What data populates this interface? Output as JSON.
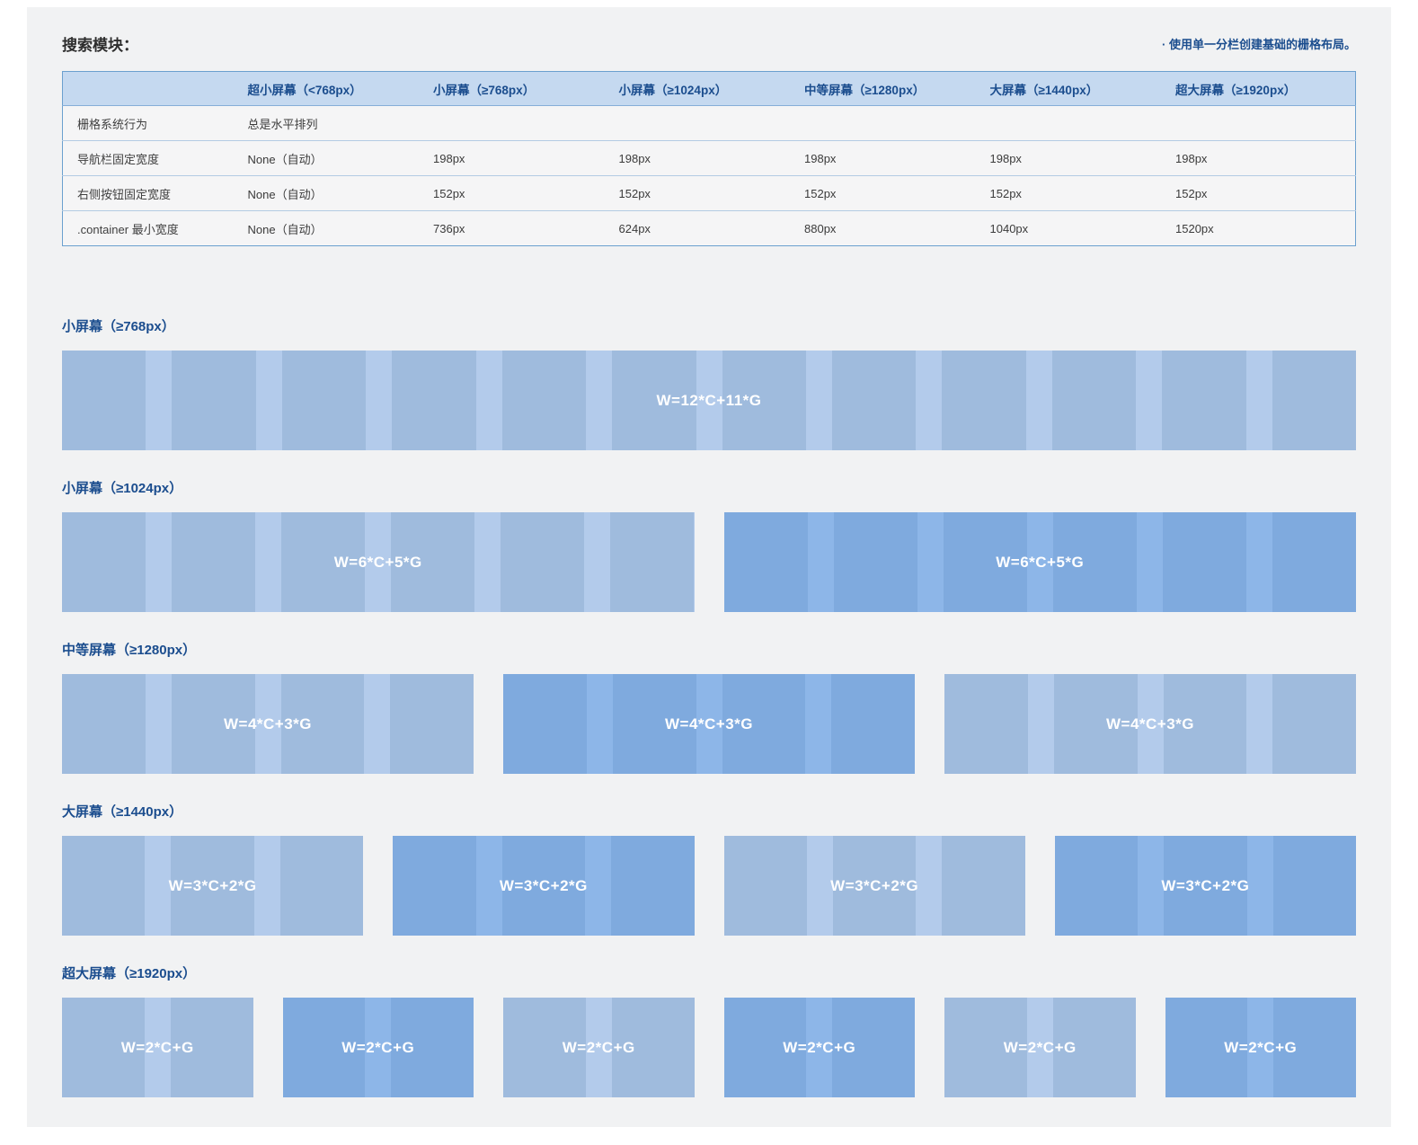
{
  "page": {
    "title": "搜索模块：",
    "note": "· 使用单一分栏创建基础的栅格布局。"
  },
  "colors": {
    "panel_bg": "#f1f2f3",
    "header_bg": "#c5d9f0",
    "header_text": "#1b4d8e",
    "table_border": "#6ba0cf",
    "row_border": "#b3cbe3",
    "row_bg": "#f5f5f6",
    "body_text": "#3b3b3b",
    "heading_text": "#1b4d8e",
    "bar_label_text": "#ffffff",
    "light_column": "#9fbbdd",
    "light_gutter": "#b3cbeb",
    "dark_column": "#7faade",
    "dark_gutter": "#8db6e8"
  },
  "table": {
    "headers": [
      "",
      "超小屏幕（<768px）",
      "小屏幕（≥768px）",
      "小屏幕（≥1024px）",
      "中等屏幕（≥1280px）",
      "大屏幕（≥1440px）",
      "超大屏幕（≥1920px）"
    ],
    "rows": [
      {
        "label": "栅格系统行为",
        "values": [
          "总是水平排列",
          "",
          "",
          "",
          "",
          ""
        ]
      },
      {
        "label": "导航栏固定宽度",
        "values": [
          "None（自动）",
          "198px",
          "198px",
          "198px",
          "198px",
          "198px"
        ]
      },
      {
        "label": "右侧按钮固定宽度",
        "values": [
          "None（自动）",
          "152px",
          "152px",
          "152px",
          "152px",
          "152px"
        ]
      },
      {
        "label": ".container 最小宽度",
        "values": [
          "None（自动）",
          "736px",
          "624px",
          "880px",
          "1040px",
          "1520px"
        ]
      }
    ]
  },
  "sections": [
    {
      "heading": "小屏幕（≥768px）",
      "bars": [
        {
          "label": "W=12*C+11*G",
          "columns": 12,
          "scheme": "light"
        }
      ]
    },
    {
      "heading": "小屏幕（≥1024px）",
      "bars": [
        {
          "label": "W=6*C+5*G",
          "columns": 6,
          "scheme": "light"
        },
        {
          "label": "W=6*C+5*G",
          "columns": 6,
          "scheme": "dark"
        }
      ]
    },
    {
      "heading": "中等屏幕（≥1280px）",
      "bars": [
        {
          "label": "W=4*C+3*G",
          "columns": 4,
          "scheme": "light"
        },
        {
          "label": "W=4*C+3*G",
          "columns": 4,
          "scheme": "dark"
        },
        {
          "label": "W=4*C+3*G",
          "columns": 4,
          "scheme": "light"
        }
      ]
    },
    {
      "heading": "大屏幕（≥1440px）",
      "bars": [
        {
          "label": "W=3*C+2*G",
          "columns": 3,
          "scheme": "light"
        },
        {
          "label": "W=3*C+2*G",
          "columns": 3,
          "scheme": "dark"
        },
        {
          "label": "W=3*C+2*G",
          "columns": 3,
          "scheme": "light"
        },
        {
          "label": "W=3*C+2*G",
          "columns": 3,
          "scheme": "dark"
        }
      ]
    },
    {
      "heading": "超大屏幕（≥1920px）",
      "bars": [
        {
          "label": "W=2*C+G",
          "columns": 2,
          "scheme": "light"
        },
        {
          "label": "W=2*C+G",
          "columns": 2,
          "scheme": "dark"
        },
        {
          "label": "W=2*C+G",
          "columns": 2,
          "scheme": "light"
        },
        {
          "label": "W=2*C+G",
          "columns": 2,
          "scheme": "dark"
        },
        {
          "label": "W=2*C+G",
          "columns": 2,
          "scheme": "light"
        },
        {
          "label": "W=2*C+G",
          "columns": 2,
          "scheme": "dark"
        }
      ]
    }
  ]
}
